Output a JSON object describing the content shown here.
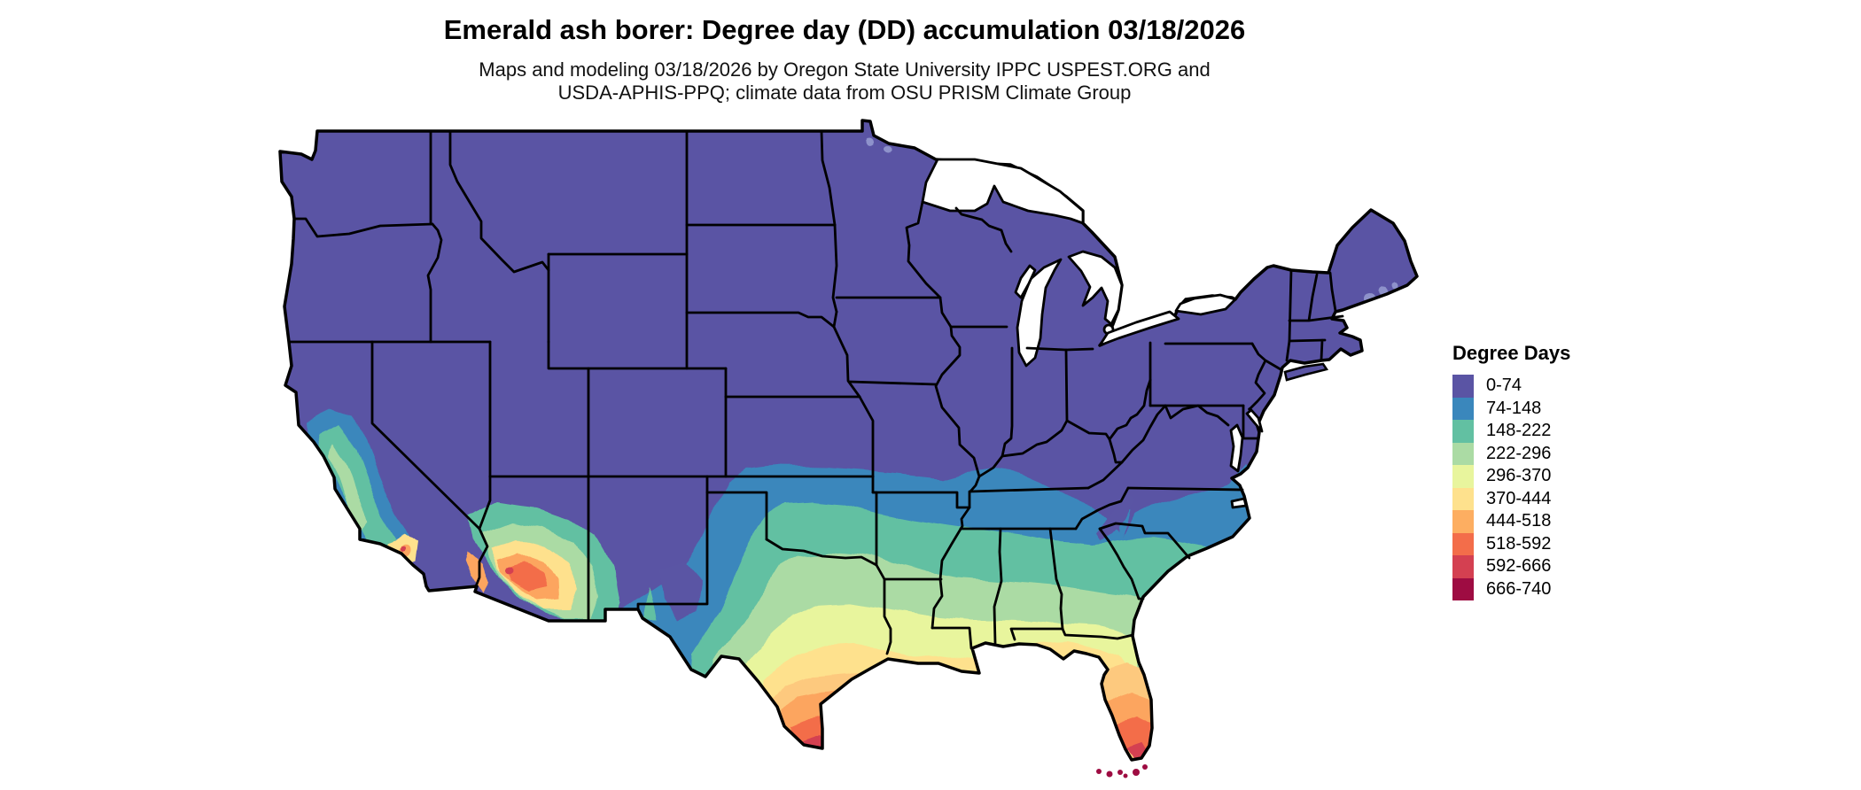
{
  "header": {
    "title": "Emerald ash borer: Degree day (DD) accumulation 03/18/2026",
    "subtitle_line1": "Maps and modeling 03/18/2026 by Oregon State University IPPC USPEST.ORG and",
    "subtitle_line2": "USDA-APHIS-PPQ; climate data from OSU PRISM Climate Group"
  },
  "legend": {
    "title": "Degree Days",
    "items": [
      {
        "label": "0-74",
        "color": "#5A54A4"
      },
      {
        "label": "74-148",
        "color": "#3A87BC"
      },
      {
        "label": "148-222",
        "color": "#62C0A2"
      },
      {
        "label": "222-296",
        "color": "#ABDBA4"
      },
      {
        "label": "296-370",
        "color": "#E8F59D"
      },
      {
        "label": "370-444",
        "color": "#FEE18D"
      },
      {
        "label": "444-518",
        "color": "#FDAE61"
      },
      {
        "label": "518-592",
        "color": "#F36D4A"
      },
      {
        "label": "592-666",
        "color": "#D44051"
      },
      {
        "label": "666-740",
        "color": "#9E0C42"
      }
    ]
  },
  "map": {
    "description": "Continental United States degree-day raster with state borders"
  }
}
